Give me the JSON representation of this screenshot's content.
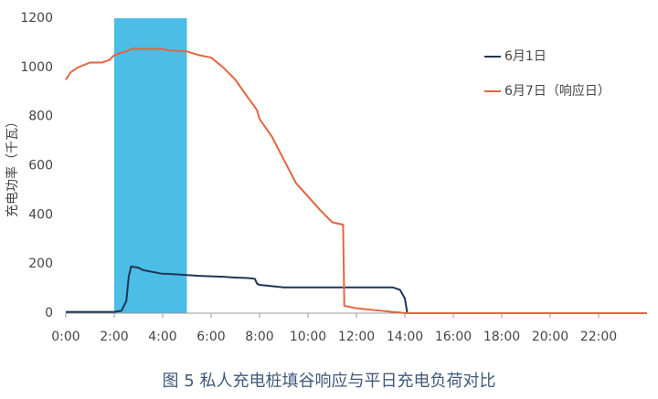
{
  "chart_data": {
    "type": "line",
    "caption": "图 5  私人充电桩填谷响应与平日充电负荷对比",
    "y_label": "充电功率（千瓦）",
    "x": [
      0,
      0.2,
      0.5,
      1,
      1.5,
      1.8,
      2,
      2.3,
      2.5,
      2.6,
      2.7,
      3,
      3.2,
      4,
      4.2,
      5,
      5.5,
      6,
      6.5,
      7,
      7.5,
      7.8,
      7.9,
      8,
      8.5,
      9,
      9.5,
      10,
      10.5,
      11,
      11.45,
      11.5,
      12,
      13,
      13.5,
      13.8,
      14,
      14.1,
      24
    ],
    "series": [
      {
        "name": "6月1日",
        "color": "#1f3556",
        "values": [
          5,
          5,
          5,
          5,
          5,
          5,
          5,
          10,
          50,
          150,
          190,
          185,
          175,
          160,
          160,
          155,
          152,
          150,
          148,
          145,
          143,
          140,
          120,
          115,
          110,
          105,
          105,
          105,
          105,
          105,
          105,
          105,
          105,
          105,
          105,
          95,
          60,
          0,
          0
        ]
      },
      {
        "name": "6月7日（响应日）",
        "color": "#e4653f",
        "values": [
          950,
          980,
          1000,
          1020,
          1020,
          1030,
          1050,
          1060,
          1065,
          1070,
          1075,
          1075,
          1075,
          1075,
          1070,
          1065,
          1050,
          1040,
          1000,
          950,
          880,
          840,
          825,
          790,
          720,
          625,
          530,
          475,
          420,
          370,
          360,
          30,
          20,
          10,
          5,
          3,
          0,
          0,
          0
        ]
      }
    ],
    "highlight": {
      "range": [
        2,
        5
      ],
      "color": "#4bbde6"
    },
    "xlim": [
      0,
      24
    ],
    "xticks": [
      {
        "value": 0,
        "label": "0:00"
      },
      {
        "value": 2,
        "label": "2:00"
      },
      {
        "value": 4,
        "label": "4:00"
      },
      {
        "value": 6,
        "label": "6:00"
      },
      {
        "value": 8,
        "label": "8:00"
      },
      {
        "value": 10,
        "label": "10:00"
      },
      {
        "value": 12,
        "label": "12:00"
      },
      {
        "value": 14,
        "label": "14:00"
      },
      {
        "value": 16,
        "label": "16:00"
      },
      {
        "value": 18,
        "label": "18:00"
      },
      {
        "value": 20,
        "label": "20:00"
      },
      {
        "value": 22,
        "label": "22:00"
      }
    ],
    "ylim": [
      0,
      1200
    ],
    "yticks": [
      0,
      200,
      400,
      600,
      800,
      1000,
      1200
    ],
    "grid": false,
    "legend": "upper right"
  }
}
